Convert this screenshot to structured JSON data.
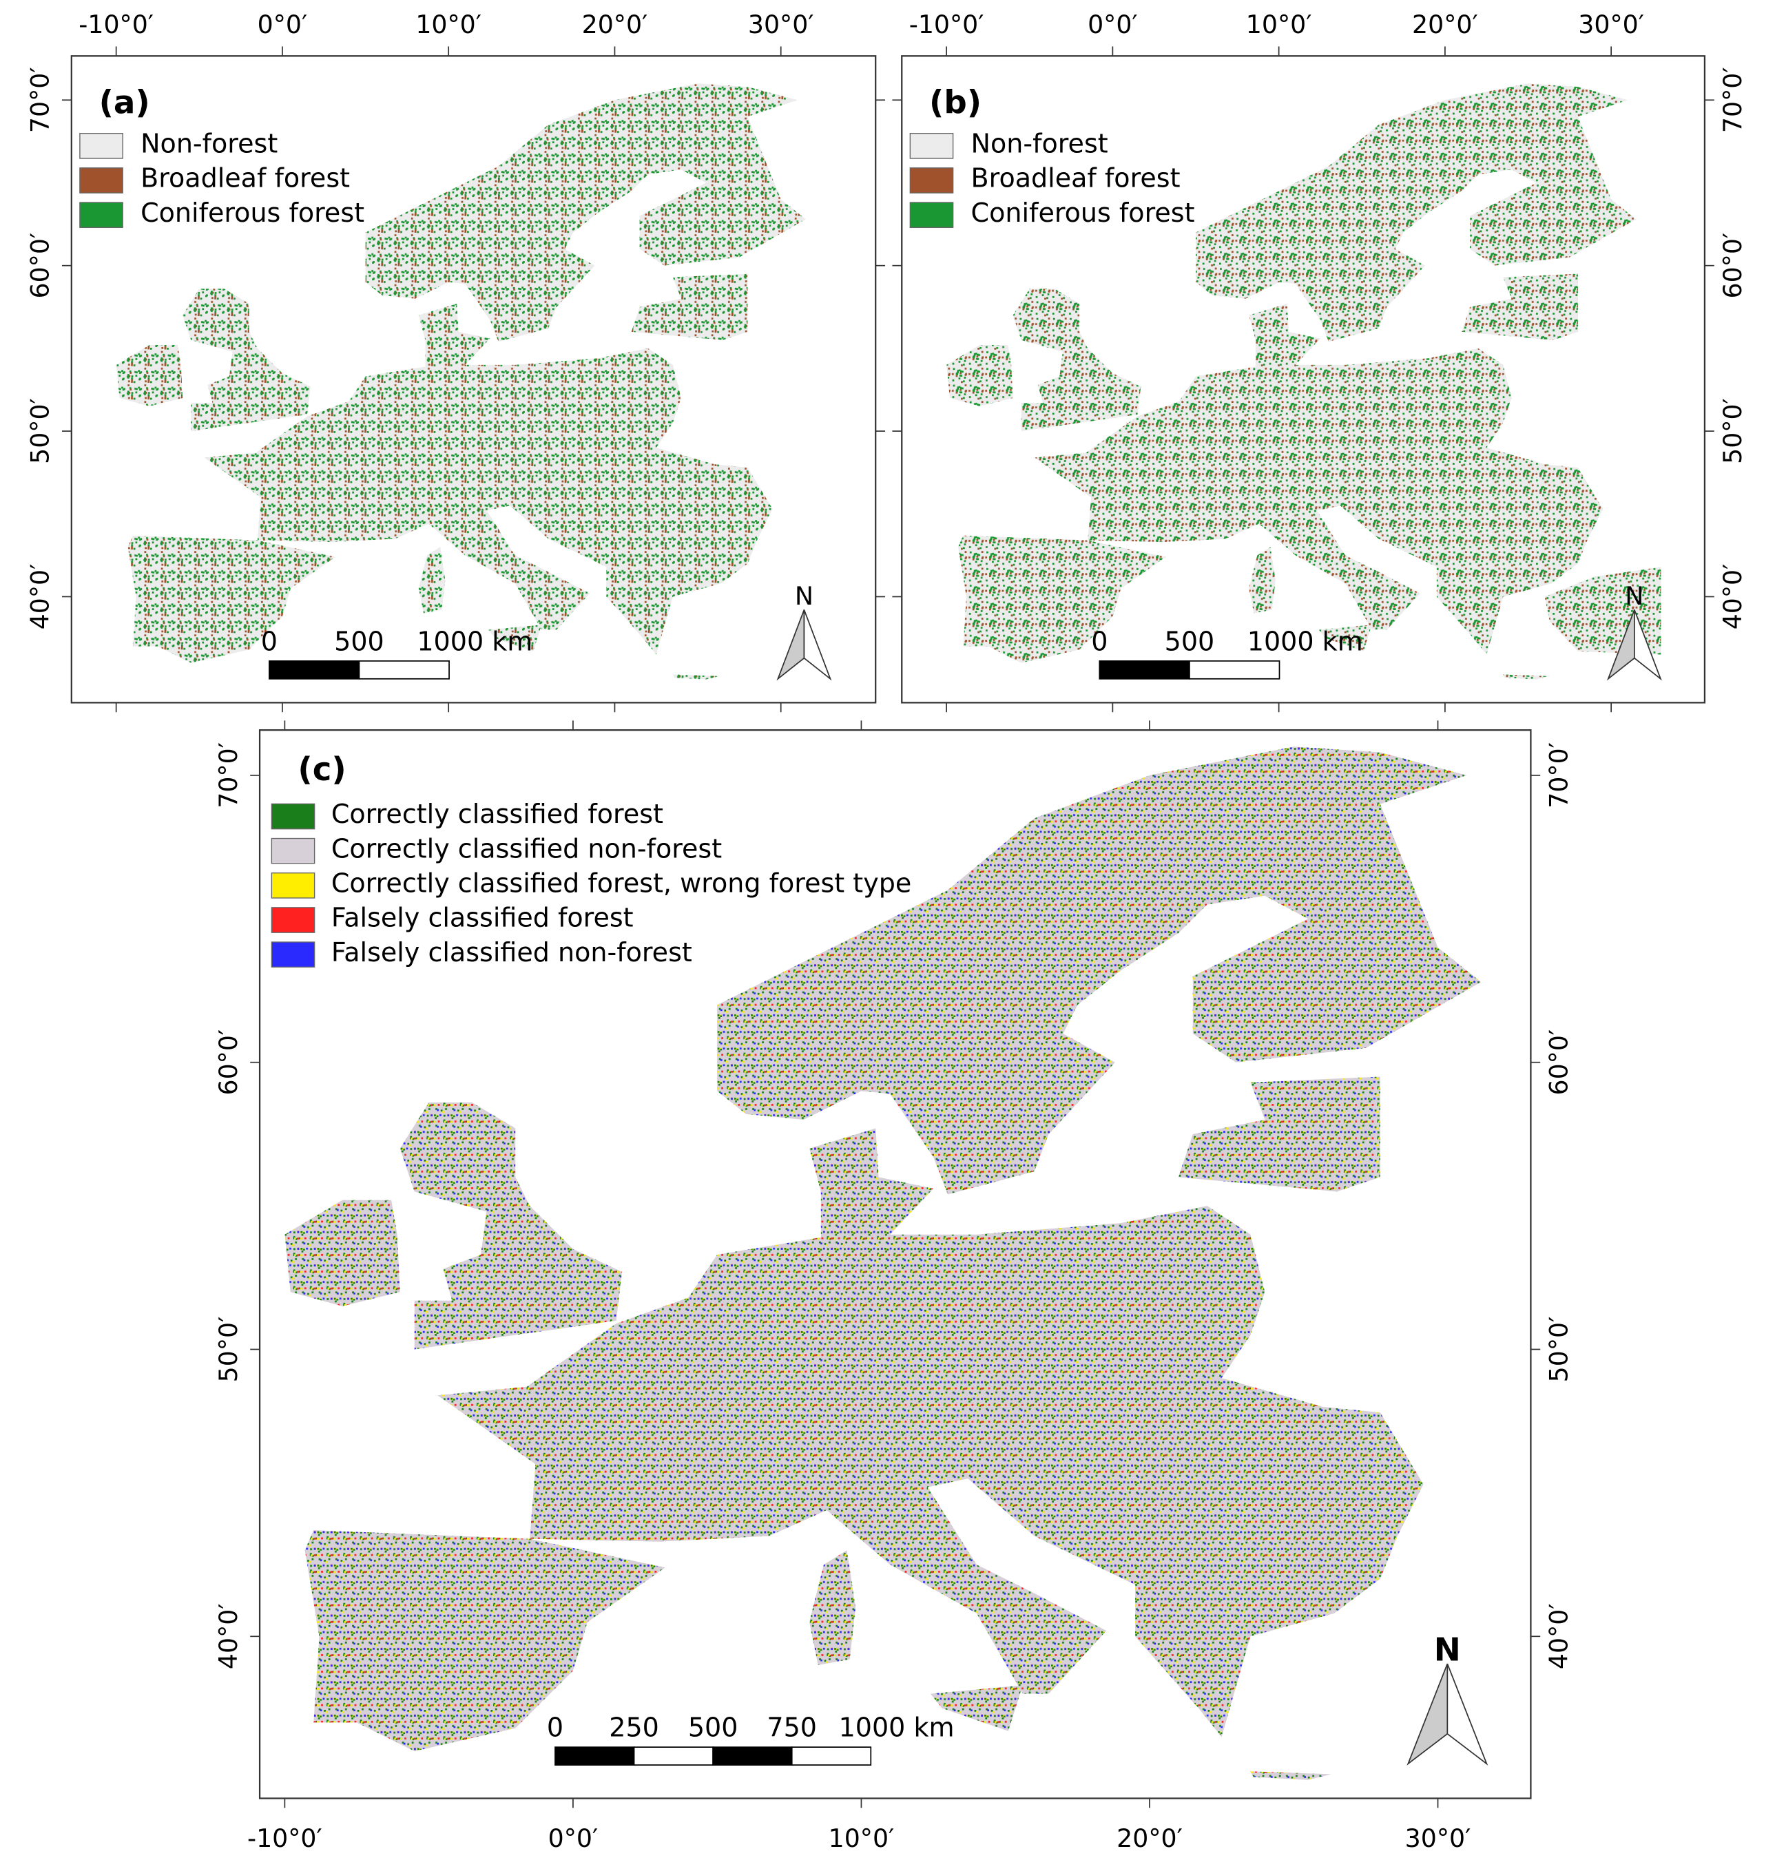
{
  "panels": [
    {
      "label": "(a)",
      "legend": [
        {
          "label": "Non-forest",
          "color": "#ececec"
        },
        {
          "label": "Broadleaf forest",
          "color": "#a0522d"
        },
        {
          "label": "Coniferous forest",
          "color": "#1a9632"
        }
      ],
      "x_ticks": [
        {
          "value": -10,
          "label": "-10°0′"
        },
        {
          "value": 0,
          "label": "0°0′"
        },
        {
          "value": 10,
          "label": "10°0′"
        },
        {
          "value": 20,
          "label": "20°0′"
        },
        {
          "value": 30,
          "label": "30°0′"
        }
      ],
      "y_ticks": [
        {
          "value": 70,
          "label": "70°0′"
        },
        {
          "value": 60,
          "label": "60°0′"
        },
        {
          "value": 50,
          "label": "50°0′"
        },
        {
          "value": 40,
          "label": "40°0′"
        }
      ],
      "scale_bar": [
        "0",
        "500",
        "1000 km"
      ],
      "north": "N"
    },
    {
      "label": "(b)",
      "legend": [
        {
          "label": "Non-forest",
          "color": "#ececec"
        },
        {
          "label": "Broadleaf forest",
          "color": "#a0522d"
        },
        {
          "label": "Coniferous forest",
          "color": "#1a9632"
        }
      ],
      "x_ticks": [
        {
          "value": -10,
          "label": "-10°0′"
        },
        {
          "value": 0,
          "label": "0°0′"
        },
        {
          "value": 10,
          "label": "10°0′"
        },
        {
          "value": 20,
          "label": "20°0′"
        },
        {
          "value": 30,
          "label": "30°0′"
        }
      ],
      "y_ticks": [
        {
          "value": 70,
          "label": "70°0′"
        },
        {
          "value": 60,
          "label": "60°0′"
        },
        {
          "value": 50,
          "label": "50°0′"
        },
        {
          "value": 40,
          "label": "40°0′"
        }
      ],
      "scale_bar": [
        "0",
        "500",
        "1000 km"
      ],
      "north": "N"
    },
    {
      "label": "(c)",
      "legend": [
        {
          "label": "Correctly classified forest",
          "color": "#1a7f1a"
        },
        {
          "label": "Correctly classified non-forest",
          "color": "#d8d0d8"
        },
        {
          "label": "Correctly classified forest, wrong forest type",
          "color": "#ffee00"
        },
        {
          "label": "Falsely classified forest",
          "color": "#ff2020"
        },
        {
          "label": "Falsely classified non-forest",
          "color": "#2a2aff"
        }
      ],
      "x_ticks": [
        {
          "value": -10,
          "label": "-10°0′"
        },
        {
          "value": 0,
          "label": "0°0′"
        },
        {
          "value": 10,
          "label": "10°0′"
        },
        {
          "value": 20,
          "label": "20°0′"
        },
        {
          "value": 30,
          "label": "30°0′"
        }
      ],
      "y_ticks": [
        {
          "value": 70,
          "label": "70°0′"
        },
        {
          "value": 60,
          "label": "60°0′"
        },
        {
          "value": 50,
          "label": "50°0′"
        },
        {
          "value": 40,
          "label": "40°0′"
        }
      ],
      "scale_bar": [
        "0",
        "250",
        "500",
        "750",
        "1000 km"
      ],
      "north": "N"
    }
  ]
}
